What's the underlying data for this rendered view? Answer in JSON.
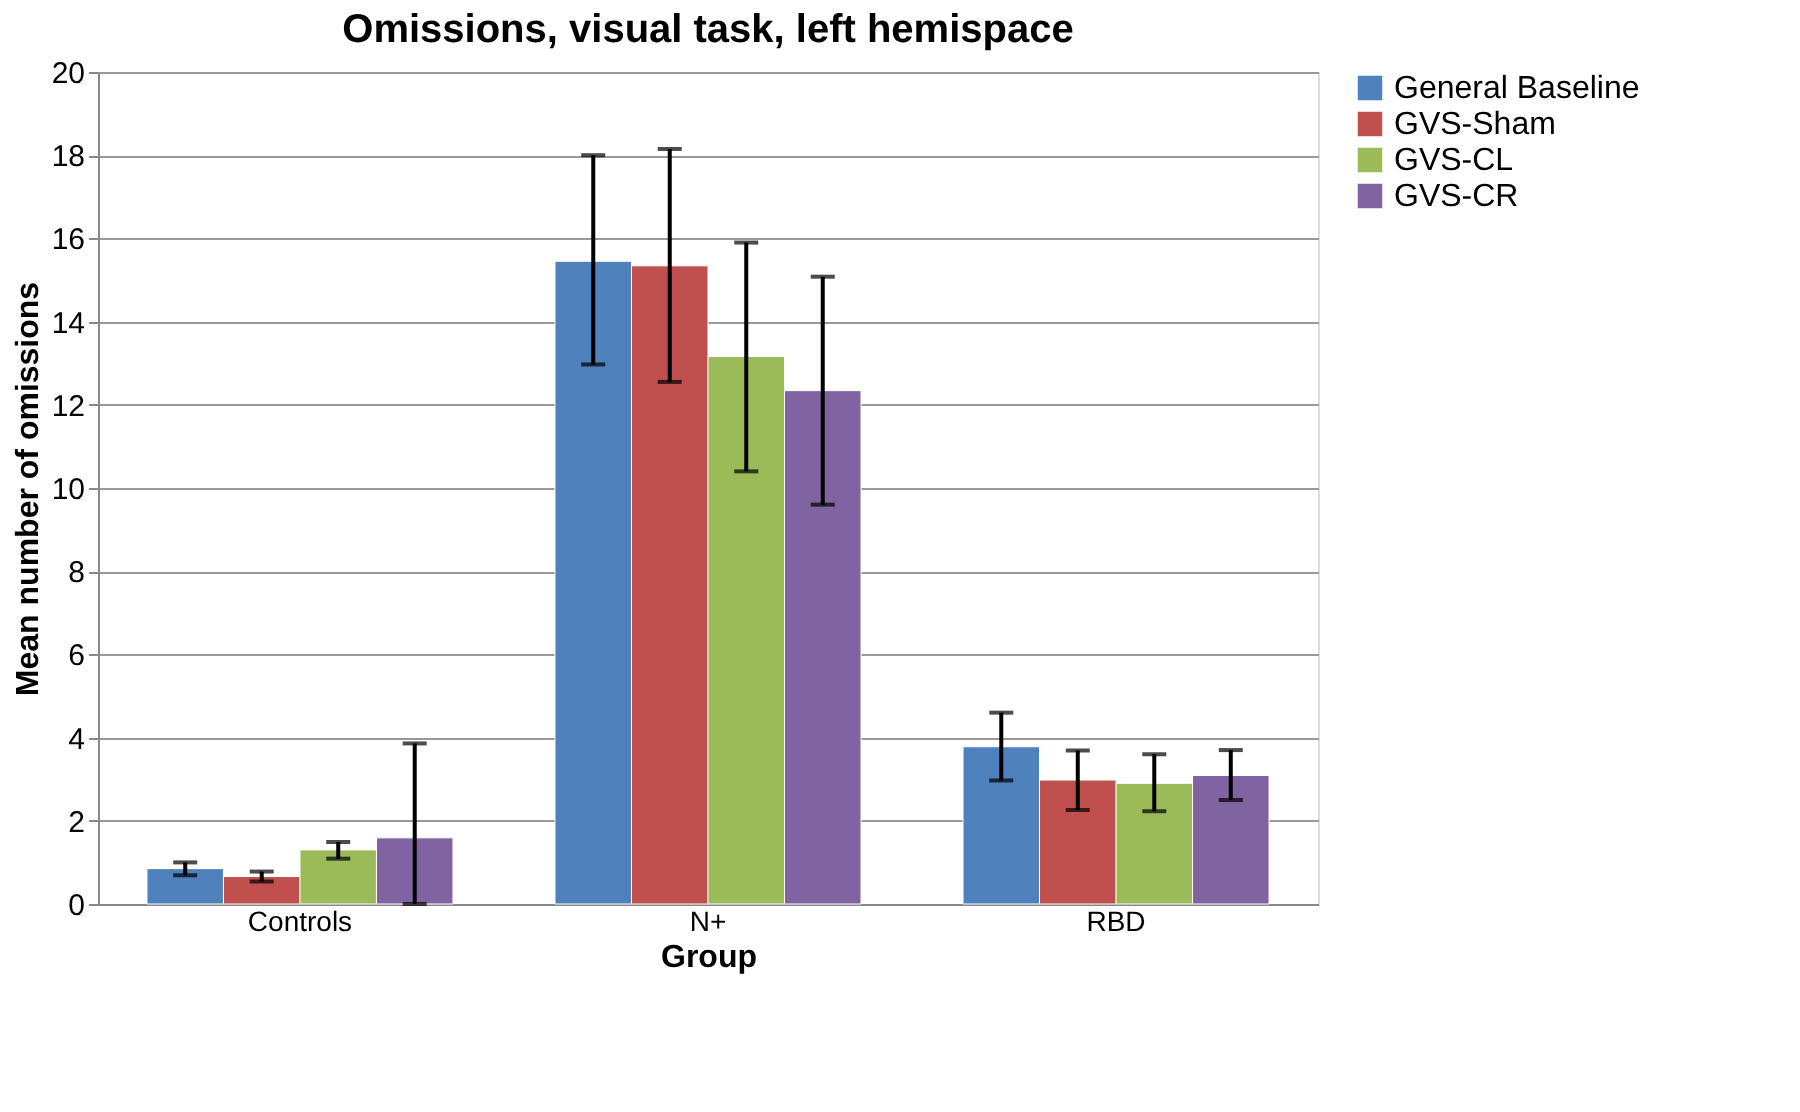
{
  "chart_data": {
    "type": "bar",
    "title": "Omissions, visual task, left hemispace",
    "xlabel": "Group",
    "ylabel": "Mean number of omissions",
    "categories": [
      "Controls",
      "N+",
      "RBD"
    ],
    "series": [
      {
        "name": "General Baseline",
        "color": "#4f81bd",
        "values": [
          0.85,
          15.45,
          3.78
        ],
        "errors": [
          [
            0.69,
            1.0
          ],
          [
            12.97,
            18.0
          ],
          [
            2.97,
            4.6
          ]
        ]
      },
      {
        "name": "GVS-Sham",
        "color": "#c0504d",
        "values": [
          0.66,
          15.34,
          2.98
        ],
        "errors": [
          [
            0.54,
            0.78
          ],
          [
            12.55,
            18.15
          ],
          [
            2.26,
            3.69
          ]
        ]
      },
      {
        "name": "GVS-CL",
        "color": "#9bbb59",
        "values": [
          1.3,
          13.16,
          2.9
        ],
        "errors": [
          [
            1.09,
            1.49
          ],
          [
            10.4,
            15.9
          ],
          [
            2.23,
            3.6
          ]
        ]
      },
      {
        "name": "GVS-CR",
        "color": "#8064a2",
        "values": [
          1.59,
          12.34,
          3.09
        ],
        "errors": [
          [
            0.0,
            3.86
          ],
          [
            9.6,
            15.08
          ],
          [
            2.5,
            3.7
          ]
        ]
      }
    ],
    "ylim": [
      0,
      20
    ],
    "yticks": [
      0,
      2,
      4,
      6,
      8,
      10,
      12,
      14,
      16,
      18,
      20
    ],
    "grid": "y",
    "legend": "top right"
  }
}
